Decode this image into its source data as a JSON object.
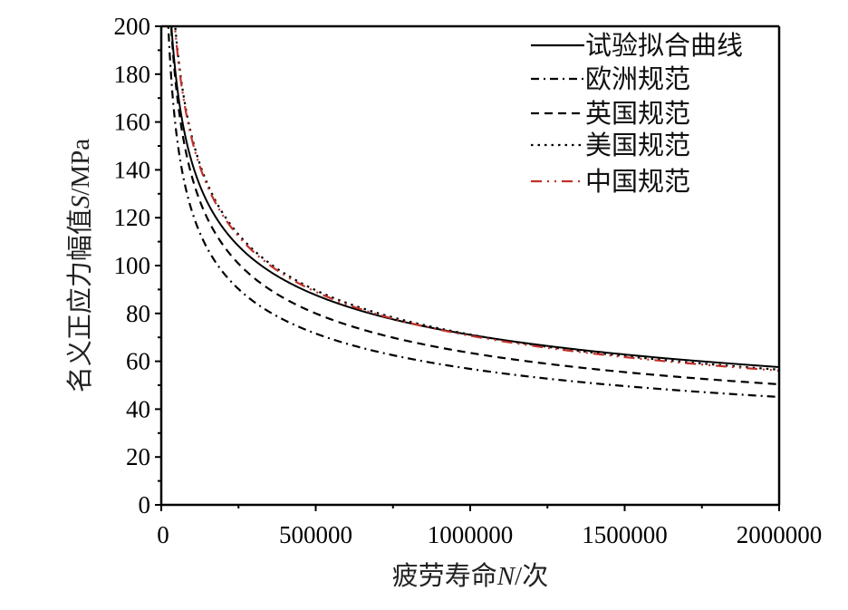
{
  "chart_data": {
    "type": "line",
    "title": "",
    "xlabel_parts": [
      "疲劳寿命",
      "N",
      "/次"
    ],
    "ylabel_parts": [
      "名义正应力幅值",
      "S",
      "/MPa"
    ],
    "xlim": [
      0,
      2000000
    ],
    "ylim": [
      0,
      200
    ],
    "x_ticks": [
      0,
      500000,
      1000000,
      1500000,
      2000000
    ],
    "x_tick_labels": [
      "0",
      "500000",
      "1000000",
      "1500000",
      "2000000"
    ],
    "y_ticks": [
      0,
      20,
      40,
      60,
      80,
      100,
      120,
      140,
      160,
      180,
      200
    ],
    "y_tick_labels": [
      "0",
      "20",
      "40",
      "60",
      "80",
      "100",
      "120",
      "140",
      "160",
      "180",
      "200"
    ],
    "grid": false,
    "legend_position": "top-right",
    "x": [
      30000,
      50000,
      100000,
      150000,
      200000,
      300000,
      400000,
      500000,
      600000,
      700000,
      800000,
      1000000,
      1200000,
      1400000,
      1600000,
      1800000,
      2000000
    ],
    "series": [
      {
        "name": "试验拟合曲线",
        "style": "solid",
        "color": "#000000",
        "S_at_2e6": 57.6,
        "m": 3.3,
        "values_note": "S = S_at_2e6 * (2000000/N)^(1/m)"
      },
      {
        "name": "欧洲规范",
        "style": "dashdot",
        "color": "#000000",
        "S_at_2e6": 45.1,
        "m": 3
      },
      {
        "name": "英国规范",
        "style": "dashed",
        "color": "#000000",
        "S_at_2e6": 50.4,
        "m": 3
      },
      {
        "name": "美国规范",
        "style": "dotted",
        "color": "#000000",
        "S_at_2e6": 56.5,
        "m": 3
      },
      {
        "name": "中国规范",
        "style": "dashdotdot",
        "color": "#c0302a",
        "S_at_2e6": 56.1,
        "m": 3
      }
    ]
  }
}
